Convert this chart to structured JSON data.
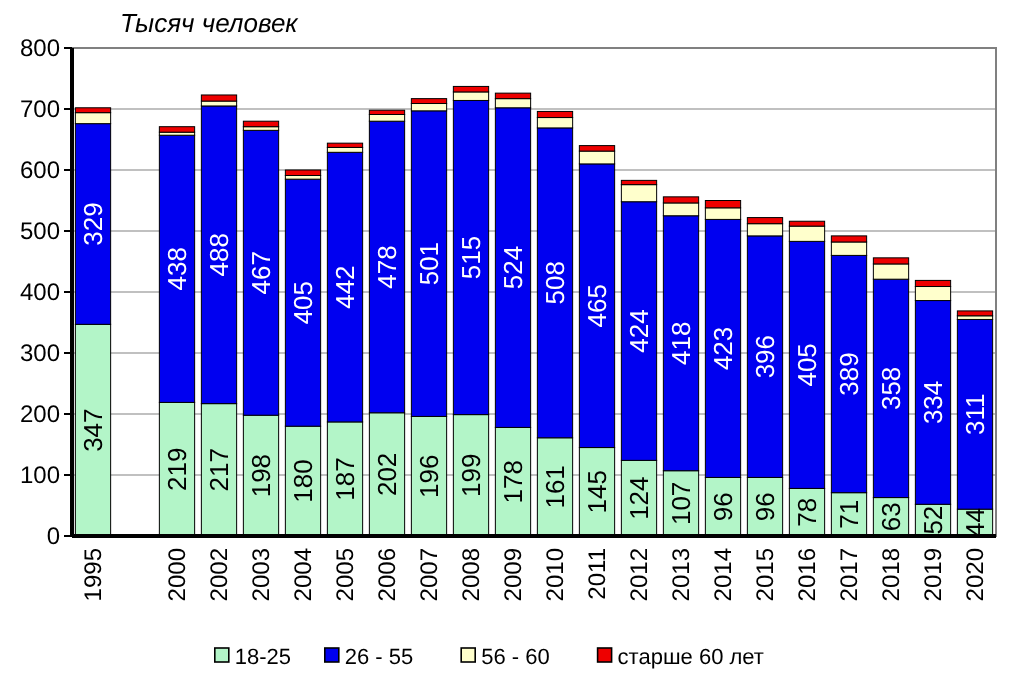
{
  "chart_data": {
    "type": "bar",
    "stacked": true,
    "title": "Тысяч человек",
    "categories": [
      "1995",
      null,
      "2000",
      "2002",
      "2003",
      "2004",
      "2005",
      "2006",
      "2007",
      "2008",
      "2009",
      "2010",
      "2011",
      "2012",
      "2013",
      "2014",
      "2015",
      "2016",
      "2017",
      "2018",
      "2019",
      "2020"
    ],
    "series": [
      {
        "name": "18-25",
        "color": "#b3f5c8",
        "values": [
          347,
          null,
          219,
          217,
          198,
          180,
          187,
          202,
          196,
          199,
          178,
          161,
          145,
          124,
          107,
          96,
          96,
          78,
          71,
          63,
          52,
          44
        ],
        "value_labels": [
          "347",
          null,
          "219",
          "217",
          "198",
          "180",
          "187",
          "202",
          "196",
          "199",
          "178",
          "161",
          "145",
          "124",
          "107",
          "96",
          "96",
          "78",
          "71",
          "63",
          "52",
          "44"
        ]
      },
      {
        "name": "26 - 55",
        "color": "#0000f0",
        "values": [
          329,
          null,
          438,
          488,
          467,
          405,
          442,
          478,
          501,
          515,
          524,
          508,
          465,
          424,
          418,
          423,
          396,
          405,
          389,
          358,
          334,
          311
        ],
        "value_labels": [
          "329",
          null,
          "438",
          "488",
          "467",
          "405",
          "442",
          "478",
          "501",
          "515",
          "524",
          "508",
          "465",
          "424",
          "418",
          "423",
          "396",
          "405",
          "389",
          "358",
          "334",
          "311"
        ]
      },
      {
        "name": "56 - 60",
        "color": "#ffffcc",
        "values": [
          18,
          null,
          5,
          8,
          6,
          6,
          8,
          11,
          12,
          14,
          15,
          17,
          21,
          28,
          21,
          19,
          20,
          25,
          22,
          25,
          23,
          6
        ]
      },
      {
        "name": "старше 60 лет",
        "color": "#ee0000",
        "values": [
          8,
          null,
          9,
          10,
          9,
          9,
          7,
          7,
          8,
          9,
          9,
          10,
          9,
          7,
          10,
          12,
          10,
          8,
          10,
          10,
          10,
          8
        ]
      }
    ],
    "ylim": [
      0,
      800
    ],
    "yticks": [
      0,
      100,
      200,
      300,
      400,
      500,
      600,
      700,
      800
    ],
    "grid": "y",
    "legend": "bottom"
  }
}
